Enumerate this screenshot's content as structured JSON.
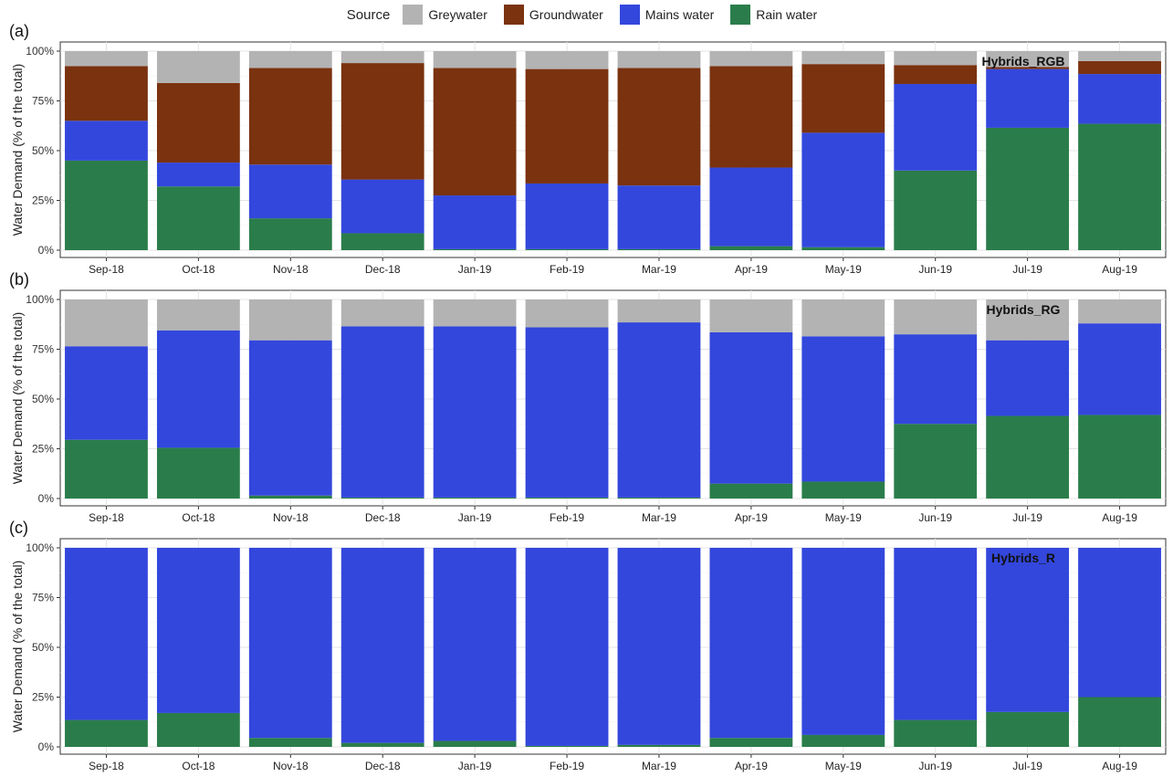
{
  "legend": {
    "title": "Source",
    "items": [
      {
        "key": "greywater",
        "label": "Greywater",
        "color": "#b3b3b3"
      },
      {
        "key": "groundwater",
        "label": "Groundwater",
        "color": "#7a320f"
      },
      {
        "key": "mains",
        "label": "Mains water",
        "color": "#3347dc"
      },
      {
        "key": "rain",
        "label": "Rain water",
        "color": "#2a7d4a"
      }
    ]
  },
  "chart_data": [
    {
      "type": "bar",
      "stacked": true,
      "panel_label": "(a)",
      "annotation": "Hybrids_RGB",
      "xlabel": "",
      "ylabel": "Water Demand (% of the total)",
      "ylim": [
        0,
        100
      ],
      "yticks": [
        "0%",
        "25%",
        "50%",
        "75%",
        "100%"
      ],
      "grid": true,
      "categories": [
        "Sep-18",
        "Oct-18",
        "Nov-18",
        "Dec-18",
        "Jan-19",
        "Feb-19",
        "Mar-19",
        "Apr-19",
        "May-19",
        "Jun-19",
        "Jul-19",
        "Aug-19"
      ],
      "series": [
        {
          "name": "Rain water",
          "key": "rain",
          "values": [
            45,
            32,
            16,
            8.5,
            0.5,
            0.5,
            0.5,
            2,
            1.5,
            40,
            61.5,
            63.5
          ]
        },
        {
          "name": "Mains water",
          "key": "mains",
          "values": [
            20,
            12,
            27,
            27,
            27,
            33,
            32,
            39.5,
            57.5,
            43.5,
            29.5,
            25
          ]
        },
        {
          "name": "Groundwater",
          "key": "groundwater",
          "values": [
            27.5,
            40,
            48.5,
            58.5,
            64,
            57.5,
            59,
            51,
            34.5,
            9.5,
            1,
            6.5
          ]
        },
        {
          "name": "Greywater",
          "key": "greywater",
          "values": [
            7.5,
            16,
            8.5,
            6,
            8.5,
            9,
            8.5,
            7.5,
            6.5,
            7,
            8,
            5
          ]
        }
      ]
    },
    {
      "type": "bar",
      "stacked": true,
      "panel_label": "(b)",
      "annotation": "Hybrids_RG",
      "xlabel": "",
      "ylabel": "Water Demand (% of the total)",
      "ylim": [
        0,
        100
      ],
      "yticks": [
        "0%",
        "25%",
        "50%",
        "75%",
        "100%"
      ],
      "grid": true,
      "categories": [
        "Sep-18",
        "Oct-18",
        "Nov-18",
        "Dec-18",
        "Jan-19",
        "Feb-19",
        "Mar-19",
        "Apr-19",
        "May-19",
        "Jun-19",
        "Jul-19",
        "Aug-19"
      ],
      "series": [
        {
          "name": "Rain water",
          "key": "rain",
          "values": [
            29.5,
            25.5,
            1.5,
            0.5,
            0.5,
            0.5,
            0.5,
            7.5,
            8.5,
            37.5,
            41.5,
            42
          ]
        },
        {
          "name": "Mains water",
          "key": "mains",
          "values": [
            47,
            59,
            78,
            86,
            86,
            85.5,
            88,
            76,
            73,
            45,
            38,
            46
          ]
        },
        {
          "name": "Greywater",
          "key": "greywater",
          "values": [
            23.5,
            15.5,
            20.5,
            13.5,
            13.5,
            14,
            11.5,
            16.5,
            18.5,
            17.5,
            20.5,
            12
          ]
        }
      ]
    },
    {
      "type": "bar",
      "stacked": true,
      "panel_label": "(c)",
      "annotation": "Hybrids_R",
      "xlabel": "",
      "ylabel": "Water Demand (% of the total)",
      "ylim": [
        0,
        100
      ],
      "yticks": [
        "0%",
        "25%",
        "50%",
        "75%",
        "100%"
      ],
      "grid": true,
      "categories": [
        "Sep-18",
        "Oct-18",
        "Nov-18",
        "Dec-18",
        "Jan-19",
        "Feb-19",
        "Mar-19",
        "Apr-19",
        "May-19",
        "Jun-19",
        "Jul-19",
        "Aug-19"
      ],
      "series": [
        {
          "name": "Rain water",
          "key": "rain",
          "values": [
            13.5,
            17,
            4.5,
            2,
            3,
            0.5,
            1,
            4.5,
            6,
            13.5,
            17.5,
            25
          ]
        },
        {
          "name": "Mains water",
          "key": "mains",
          "values": [
            86.5,
            83,
            95.5,
            98,
            97,
            99.5,
            99,
            95.5,
            94,
            86.5,
            82.5,
            75
          ]
        }
      ]
    }
  ]
}
